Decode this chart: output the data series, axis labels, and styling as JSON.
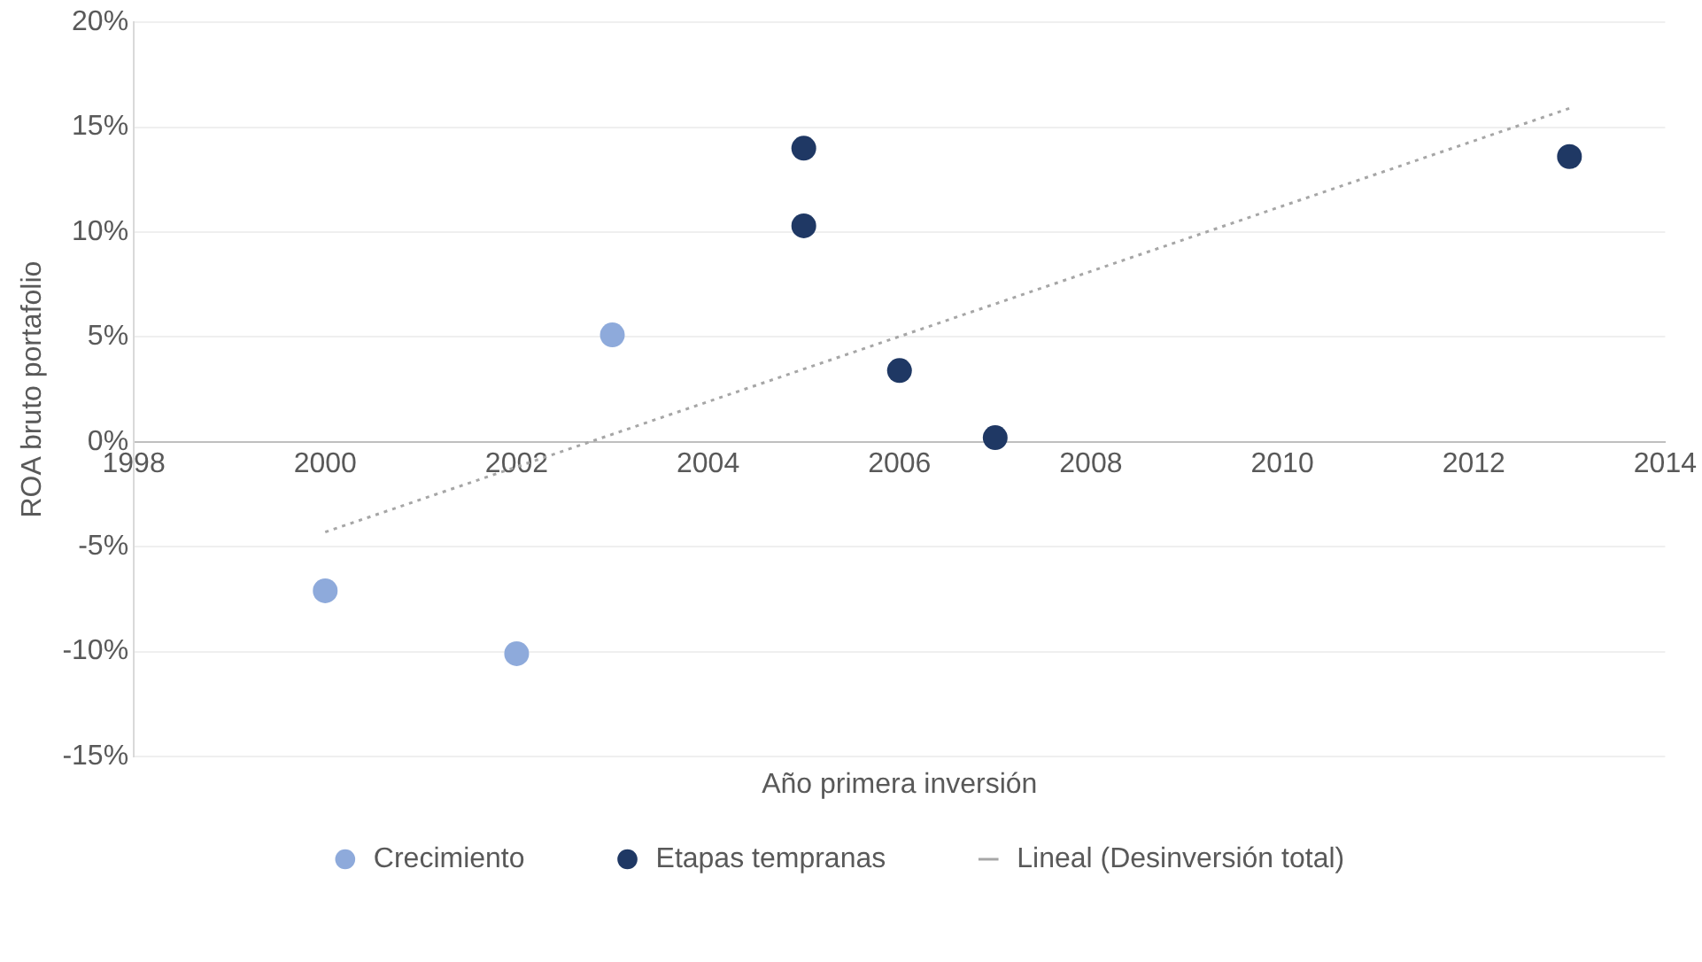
{
  "chart_data": {
    "type": "scatter",
    "xlabel": "Año primera inversión",
    "ylabel": "ROA bruto portafolio",
    "series": [
      {
        "name": "Crecimiento",
        "color": "#8eaadb",
        "x": [
          2000,
          2002,
          2003
        ],
        "values": [
          -7.1,
          -10.1,
          5.1
        ]
      },
      {
        "name": "Etapas tempranas",
        "color": "#1f3864",
        "x": [
          2005,
          2005,
          2006,
          2007,
          2013
        ],
        "values": [
          14.0,
          10.3,
          3.4,
          0.2,
          13.6
        ]
      },
      {
        "name": "Lineal (Desinversión total)",
        "type": "line",
        "color": "#a6a6a6",
        "line_style": "dotted",
        "marker": "none",
        "x": [
          2000,
          2013
        ],
        "values": [
          -4.3,
          15.9
        ]
      }
    ],
    "xlim": [
      1998,
      2014
    ],
    "xticks": [
      1998,
      2000,
      2002,
      2004,
      2006,
      2008,
      2010,
      2012,
      2014
    ],
    "ylim": [
      -15,
      20
    ],
    "yticks": [
      {
        "value": -15,
        "label": "-15%"
      },
      {
        "value": -10,
        "label": "-10%"
      },
      {
        "value": -5,
        "label": "-5%"
      },
      {
        "value": 0,
        "label": "0%"
      },
      {
        "value": 5,
        "label": "5%"
      },
      {
        "value": 10,
        "label": "10%"
      },
      {
        "value": 15,
        "label": "15%"
      },
      {
        "value": 20,
        "label": "20%"
      }
    ],
    "grid": "y",
    "legend": "bottom",
    "marker": "circle"
  }
}
